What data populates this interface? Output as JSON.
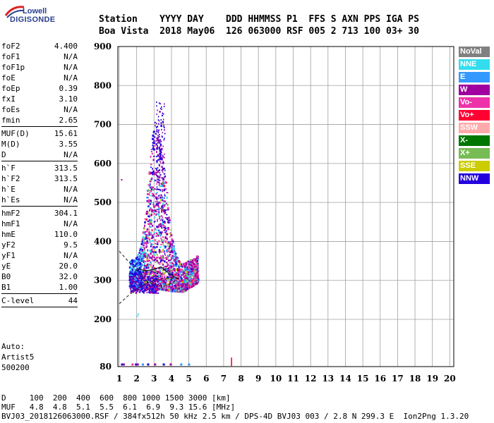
{
  "logo": {
    "line1": "Lowell",
    "line2": "DIGISONDE"
  },
  "header": {
    "line1": "Station    YYYY DAY    DDD HHMMSS P1  FFS S AXN PPS IGA PS",
    "line2": "Boa Vista  2018 May06  126 063000 RSF 005 2 713 100 03+ 30"
  },
  "params": {
    "group1": [
      {
        "k": "foF2",
        "v": "4.400"
      },
      {
        "k": "foF1",
        "v": "N/A"
      },
      {
        "k": "foF1p",
        "v": "N/A"
      },
      {
        "k": "foE",
        "v": "N/A"
      },
      {
        "k": "foEp",
        "v": "0.39"
      },
      {
        "k": "fxI",
        "v": "3.10"
      },
      {
        "k": "foEs",
        "v": "N/A"
      },
      {
        "k": "fmin",
        "v": "2.65"
      }
    ],
    "group2": [
      {
        "k": "MUF(D)",
        "v": "15.61"
      },
      {
        "k": "M(D)",
        "v": "3.55"
      },
      {
        "k": "D",
        "v": "N/A"
      }
    ],
    "group3": [
      {
        "k": "h`F",
        "v": "313.5"
      },
      {
        "k": "h`F2",
        "v": "313.5"
      },
      {
        "k": "h`E",
        "v": "N/A"
      },
      {
        "k": "h`Es",
        "v": "N/A"
      }
    ],
    "group4": [
      {
        "k": "hmF2",
        "v": "304.1"
      },
      {
        "k": "hmF1",
        "v": "N/A"
      },
      {
        "k": "hmE",
        "v": "110.0"
      },
      {
        "k": "yF2",
        "v": "9.5"
      },
      {
        "k": "yF1",
        "v": "N/A"
      },
      {
        "k": "yE",
        "v": "20.0"
      },
      {
        "k": "B0",
        "v": "32.0"
      },
      {
        "k": "B1",
        "v": "1.00"
      }
    ],
    "group5": [
      {
        "k": "C-level",
        "v": "44"
      }
    ]
  },
  "auto": {
    "line1": "Auto:",
    "line2": "Artist5",
    "line3": "500200"
  },
  "legend": [
    {
      "label": "NoVal",
      "color": "#808080"
    },
    {
      "label": "NNE",
      "color": "#33ddee"
    },
    {
      "label": "E",
      "color": "#3399ff"
    },
    {
      "label": "W",
      "color": "#a0009f"
    },
    {
      "label": "Vo-",
      "color": "#ee33aa"
    },
    {
      "label": "Vo+",
      "color": "#ff0033"
    },
    {
      "label": "SSW",
      "color": "#ffaaaa"
    },
    {
      "label": "X-",
      "color": "#007700"
    },
    {
      "label": "X+",
      "color": "#77bb55"
    },
    {
      "label": "SSE",
      "color": "#cccc00"
    },
    {
      "label": "NNW",
      "color": "#2200dd"
    }
  ],
  "chart_data": {
    "type": "scatter",
    "x_ticks": [
      "1",
      "2",
      "3",
      "4",
      "5",
      "6",
      "7",
      "8",
      "9",
      "10",
      "11",
      "12",
      "13",
      "14",
      "15",
      "16",
      "17",
      "18",
      "19",
      "20"
    ],
    "y_ticks": [
      "80",
      "200",
      "300",
      "400",
      "500",
      "600",
      "700",
      "800",
      "900"
    ],
    "xlim": [
      1,
      20
    ],
    "ylim_range_km": [
      80,
      900
    ],
    "grid": true
  },
  "footer": {
    "line1": "D     100  200  400  600  800 1000 1500 3000 [km]",
    "line2": "MUF   4.8  4.8  5.1  5.5  6.1  6.9  9.3 15.6 [MHz]",
    "line3": "BVJ03_2018126063000.RSF / 384fx512h 50 kHz 2.5 km / DPS-4D BVJ03 003 / 2.8 N 299.3 E  Ion2Png 1.3.20"
  }
}
